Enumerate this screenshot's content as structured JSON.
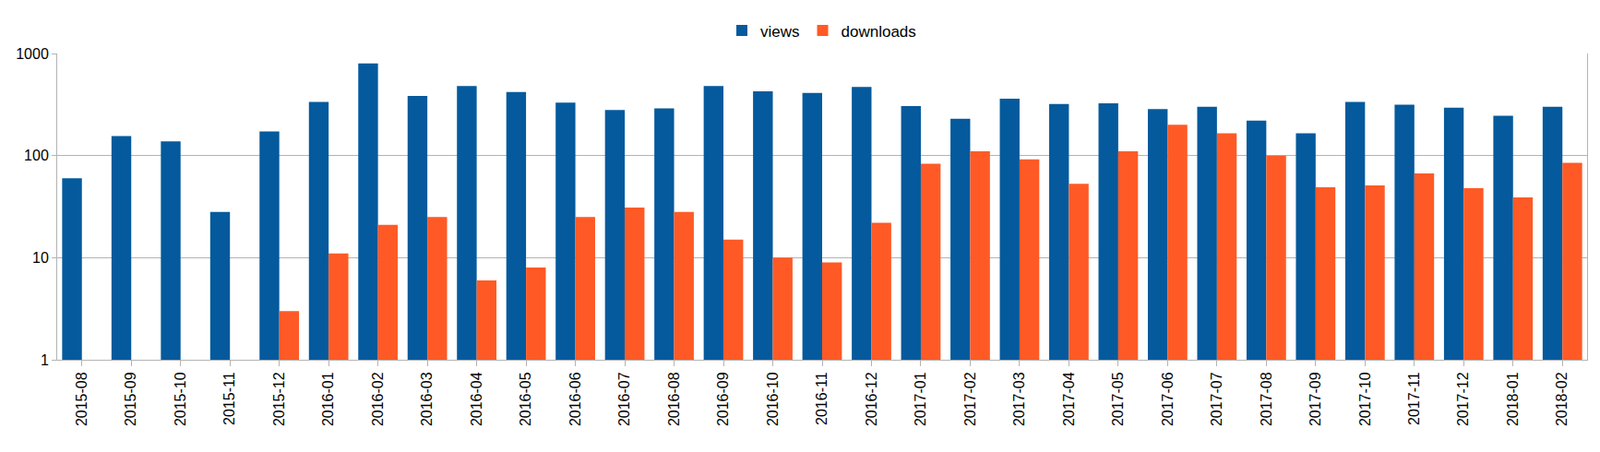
{
  "chart_data": {
    "type": "bar",
    "categories": [
      "2015-08",
      "2015-09",
      "2015-10",
      "2015-11",
      "2015-12",
      "2016-01",
      "2016-02",
      "2016-03",
      "2016-04",
      "2016-05",
      "2016-06",
      "2016-07",
      "2016-08",
      "2016-09",
      "2016-10",
      "2016-11",
      "2016-12",
      "2017-01",
      "2017-02",
      "2017-03",
      "2017-04",
      "2017-05",
      "2017-06",
      "2017-07",
      "2017-08",
      "2017-09",
      "2017-10",
      "2017-11",
      "2017-12",
      "2018-01",
      "2018-02"
    ],
    "series": [
      {
        "name": "views",
        "color": "#045a9c",
        "values": [
          60,
          155,
          138,
          28,
          172,
          335,
          800,
          385,
          480,
          420,
          330,
          280,
          290,
          480,
          425,
          410,
          470,
          305,
          230,
          360,
          320,
          325,
          285,
          300,
          220,
          165,
          335,
          315,
          295,
          245,
          300
        ]
      },
      {
        "name": "downloads",
        "color": "#ff5a26",
        "values": [
          null,
          null,
          null,
          null,
          3,
          11,
          21,
          25,
          6,
          8,
          25,
          31,
          28,
          15,
          10,
          9,
          22,
          83,
          110,
          92,
          53,
          110,
          200,
          165,
          100,
          49,
          51,
          67,
          48,
          39,
          85
        ]
      }
    ],
    "ylim": [
      1,
      1000
    ],
    "yticks": [
      1,
      10,
      100,
      1000
    ],
    "log": "y",
    "grid": true,
    "legend": "top"
  }
}
